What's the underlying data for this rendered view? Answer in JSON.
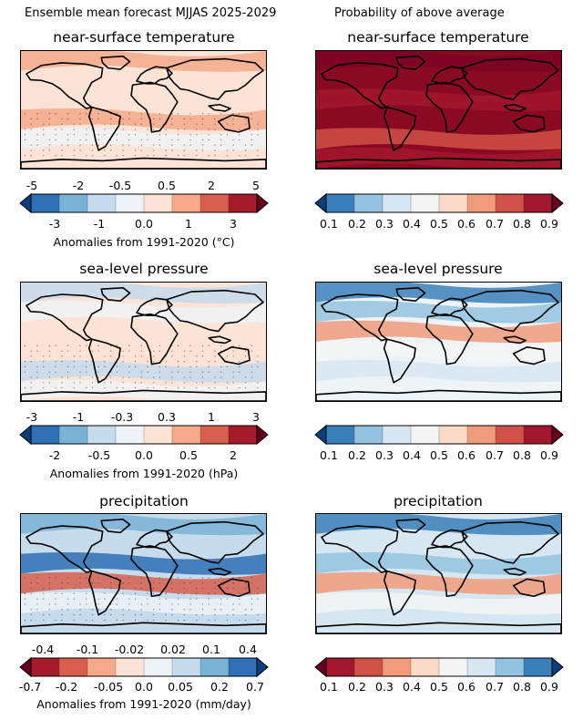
{
  "header": {
    "left": "Ensemble mean forecast MJJAS 2025-2029",
    "right": "Probability of above average"
  },
  "rows": [
    {
      "title": "near-surface temperature",
      "anomaly_ticks_top": [
        "-5",
        "-2",
        "-0.5",
        "0.5",
        "2",
        "5"
      ],
      "anomaly_ticks_bottom": [
        "-3",
        "-1",
        "0.0",
        "1",
        "3"
      ],
      "anomaly_label": "Anomalies from 1991-2020 (°C)",
      "anomaly_palette": [
        "#0b3f7c",
        "#2f70b4",
        "#7ab2d6",
        "#c6dbec",
        "#eef3f7",
        "#fbe3d6",
        "#f4a98a",
        "#d6604d",
        "#a51b2c",
        "#67001f"
      ],
      "probability_ticks": [
        "0.1",
        "0.2",
        "0.3",
        "0.4",
        "0.5",
        "0.6",
        "0.7",
        "0.8",
        "0.9"
      ],
      "probability_palette": [
        "#0b3f7c",
        "#3a7fba",
        "#93c3df",
        "#d6e6f2",
        "#f4f4f4",
        "#fbdac7",
        "#f09b7b",
        "#cf5147",
        "#a1172d",
        "#67001f"
      ]
    },
    {
      "title": "sea-level pressure",
      "anomaly_ticks_top": [
        "-3",
        "-1",
        "-0.3",
        "0.3",
        "1",
        "3"
      ],
      "anomaly_ticks_bottom": [
        "-2",
        "-0.5",
        "0.0",
        "0.5",
        "2"
      ],
      "anomaly_label": "Anomalies from 1991-2020 (hPa)",
      "anomaly_palette": [
        "#0b3f7c",
        "#2f70b4",
        "#7ab2d6",
        "#c6dbec",
        "#eef3f7",
        "#fbe3d6",
        "#f4a98a",
        "#d6604d",
        "#a51b2c",
        "#67001f"
      ],
      "probability_ticks": [
        "0.1",
        "0.2",
        "0.3",
        "0.4",
        "0.5",
        "0.6",
        "0.7",
        "0.8",
        "0.9"
      ],
      "probability_palette": [
        "#0b3f7c",
        "#3a7fba",
        "#93c3df",
        "#d6e6f2",
        "#f4f4f4",
        "#fbdac7",
        "#f09b7b",
        "#cf5147",
        "#a1172d",
        "#67001f"
      ]
    },
    {
      "title": "precipitation",
      "anomaly_ticks_top": [
        "-0.4",
        "-0.1",
        "-0.02",
        "0.02",
        "0.1",
        "0.4"
      ],
      "anomaly_ticks_bottom": [
        "-0.7",
        "-0.2",
        "-0.05",
        "0.0",
        "0.05",
        "0.2",
        "0.7"
      ],
      "anomaly_label": "Anomalies from 1991-2020 (mm/day)",
      "anomaly_palette": [
        "#67001f",
        "#a51b2c",
        "#d6604d",
        "#f4a98a",
        "#fbe3d6",
        "#eef3f7",
        "#c6dbec",
        "#7ab2d6",
        "#2f70b4",
        "#0b3f7c"
      ],
      "probability_ticks": [
        "0.1",
        "0.2",
        "0.3",
        "0.4",
        "0.5",
        "0.6",
        "0.7",
        "0.8",
        "0.9"
      ],
      "probability_palette": [
        "#67001f",
        "#a1172d",
        "#cf5147",
        "#f09b7b",
        "#fbdac7",
        "#f4f4f4",
        "#d6e6f2",
        "#93c3df",
        "#3a7fba",
        "#0b3f7c"
      ]
    }
  ],
  "map_fills": {
    "temp_mean": {
      "bg": "#fbe3d6",
      "bands": [
        "#f4a98a",
        "#fbe3d6",
        "#fbe3d6",
        "#f4a98a",
        "#eef3f7",
        "#fbe3d6"
      ]
    },
    "temp_prob": {
      "bg": "#8a0a23",
      "bands": [
        "#7a0423",
        "#8a0a23",
        "#a1172d",
        "#8a0a23",
        "#cf5147",
        "#a1172d"
      ]
    },
    "slp_mean": {
      "bg": "#fbe3d6",
      "bands": [
        "#c6dbec",
        "#eef3f7",
        "#fbe3d6",
        "#fbe3d6",
        "#c6dbec",
        "#eef3f7"
      ]
    },
    "slp_prob": {
      "bg": "#eef3f7",
      "bands": [
        "#3a7fba",
        "#93c3df",
        "#f09b7b",
        "#f4f4f4",
        "#d6e6f2",
        "#eef3f7"
      ]
    },
    "pr_mean": {
      "bg": "#c6dbec",
      "bands": [
        "#7ab2d6",
        "#c6dbec",
        "#2f70b4",
        "#d6604d",
        "#eef3f7",
        "#c6dbec"
      ]
    },
    "pr_prob": {
      "bg": "#d6e6f2",
      "bands": [
        "#3a7fba",
        "#d6e6f2",
        "#93c3df",
        "#f09b7b",
        "#f4f4f4",
        "#d6e6f2"
      ]
    }
  }
}
